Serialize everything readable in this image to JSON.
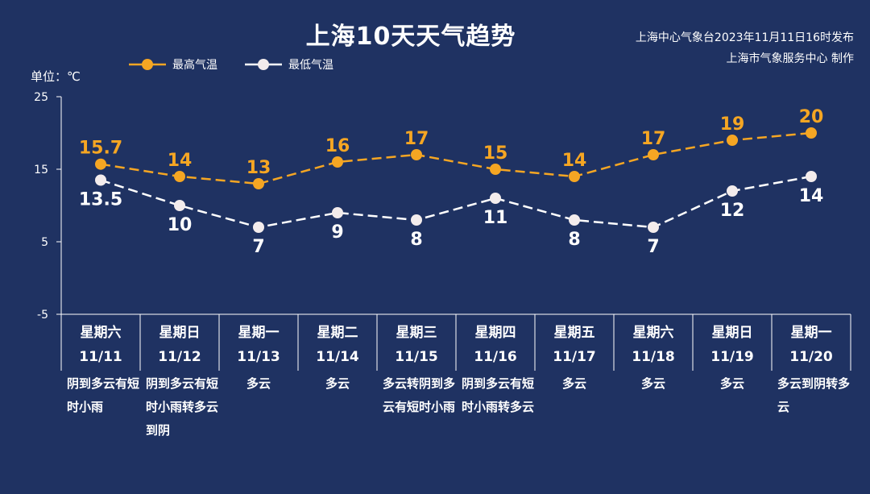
{
  "header": {
    "title": "上海10天天气趋势",
    "source_line1": "上海中心气象台2023年11月11日16时发布",
    "source_line2": "上海市气象服务中心 制作"
  },
  "legend": {
    "high_label": "最高气温",
    "low_label": "最低气温"
  },
  "unit_label": "单位：℃",
  "colors": {
    "background": "#1f3262",
    "high": "#f5a623",
    "low": "#ffffff",
    "axis": "#ffffff"
  },
  "chart_data": {
    "type": "line",
    "title": "上海10天天气趋势",
    "ylabel": "单位：℃",
    "ylim": [
      -5,
      25
    ],
    "yticks": [
      -5,
      5,
      15,
      25
    ],
    "grid": false,
    "legend_position": "top-left",
    "categories": [
      "星期六 11/11",
      "星期日 11/12",
      "星期一 11/13",
      "星期二 11/14",
      "星期三 11/15",
      "星期四 11/16",
      "星期五 11/17",
      "星期六 11/18",
      "星期日 11/19",
      "星期一 11/20"
    ],
    "series": [
      {
        "name": "最高气温",
        "values": [
          15.7,
          14,
          13,
          16,
          17,
          15,
          14,
          17,
          19,
          20
        ],
        "labels": [
          "15.7",
          "14",
          "13",
          "16",
          "17",
          "15",
          "14",
          "17",
          "19",
          "20"
        ]
      },
      {
        "name": "最低气温",
        "values": [
          13.5,
          10,
          7,
          9,
          8,
          11,
          8,
          7,
          12,
          14
        ],
        "labels": [
          "13.5",
          "10",
          "7",
          "9",
          "8",
          "11",
          "8",
          "7",
          "12",
          "14"
        ]
      }
    ]
  },
  "days": [
    {
      "weekday": "星期六",
      "date": "11/11",
      "weather": "阴到多云有短时小雨"
    },
    {
      "weekday": "星期日",
      "date": "11/12",
      "weather": "阴到多云有短时小雨转多云到阴"
    },
    {
      "weekday": "星期一",
      "date": "11/13",
      "weather": "多云"
    },
    {
      "weekday": "星期二",
      "date": "11/14",
      "weather": "多云"
    },
    {
      "weekday": "星期三",
      "date": "11/15",
      "weather": "多云转阴到多云有短时小雨"
    },
    {
      "weekday": "星期四",
      "date": "11/16",
      "weather": "阴到多云有短时小雨转多云"
    },
    {
      "weekday": "星期五",
      "date": "11/17",
      "weather": "多云"
    },
    {
      "weekday": "星期六",
      "date": "11/18",
      "weather": "多云"
    },
    {
      "weekday": "星期日",
      "date": "11/19",
      "weather": "多云"
    },
    {
      "weekday": "星期一",
      "date": "11/20",
      "weather": "多云到阴转多云"
    }
  ]
}
